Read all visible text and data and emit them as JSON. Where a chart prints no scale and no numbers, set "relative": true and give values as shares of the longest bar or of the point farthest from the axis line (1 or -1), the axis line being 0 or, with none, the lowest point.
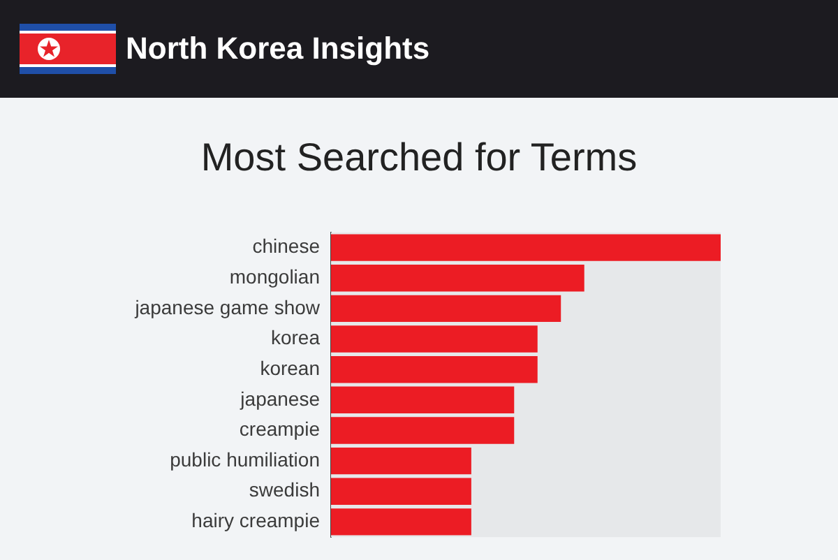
{
  "chart_data": {
    "type": "bar",
    "orientation": "horizontal",
    "relative": true,
    "title": "North Korea Insights",
    "subtitle": "Most Searched for Terms",
    "categories": [
      "chinese",
      "mongolian",
      "japanese game show",
      "korea",
      "korean",
      "japanese",
      "creampie",
      "public humiliation",
      "swedish",
      "hairy creampie"
    ],
    "values": [
      1,
      0.65,
      0.59,
      0.53,
      0.53,
      0.47,
      0.47,
      0.36,
      0.36,
      0.36
    ],
    "color": "#ec1c24"
  }
}
